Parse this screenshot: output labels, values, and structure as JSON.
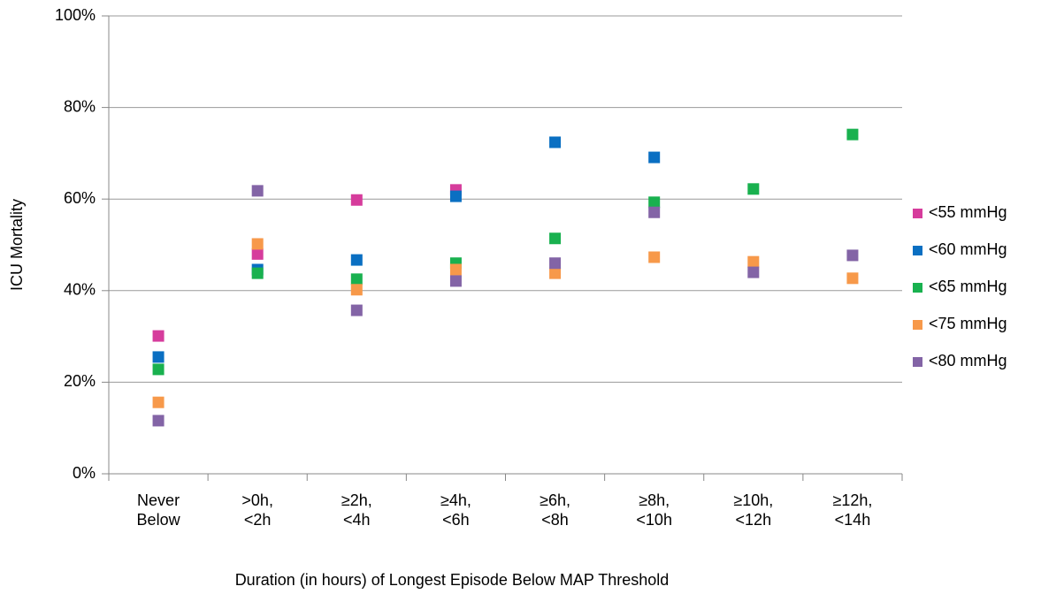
{
  "chart_data": {
    "type": "scatter",
    "y_label": "ICU Mortality",
    "x_label": "Duration (in hours) of Longest Episode Below MAP Threshold",
    "categories": [
      "Never Below",
      ">0h, <2h",
      "≥2h, <4h",
      "≥4h, <6h",
      "≥6h, <8h",
      "≥8h, <10h",
      "≥10h, <12h",
      "≥12h, <14h"
    ],
    "series": [
      {
        "name": "<55 mmHg",
        "color": "#d63c9c",
        "values": [
          30.1,
          48,
          59.8,
          62,
          null,
          null,
          null,
          null
        ]
      },
      {
        "name": "<60 mmHg",
        "color": "#0a6fc2",
        "values": [
          25.5,
          44.6,
          46.7,
          60.6,
          72.4,
          69.1,
          null,
          null
        ]
      },
      {
        "name": "<65 mmHg",
        "color": "#19b14f",
        "values": [
          22.8,
          43.8,
          42.5,
          46,
          51.4,
          59.3,
          62.2,
          74.1
        ]
      },
      {
        "name": "<75 mmHg",
        "color": "#f7994a",
        "values": [
          15.6,
          50.2,
          40.2,
          44.6,
          43.8,
          47.3,
          46.3,
          42.7
        ]
      },
      {
        "name": "<80 mmHg",
        "color": "#8364a6",
        "values": [
          11.6,
          61.8,
          35.7,
          42.1,
          46,
          57.1,
          44,
          47.7
        ]
      }
    ],
    "ylim": [
      0,
      100
    ],
    "yticks": [
      {
        "value": 0,
        "label": "0%"
      },
      {
        "value": 20,
        "label": "20%"
      },
      {
        "value": 40,
        "label": "40%"
      },
      {
        "value": 60,
        "label": "60%"
      },
      {
        "value": 80,
        "label": "80%"
      },
      {
        "value": 100,
        "label": "100%"
      }
    ],
    "grid": true,
    "legend": "right"
  }
}
